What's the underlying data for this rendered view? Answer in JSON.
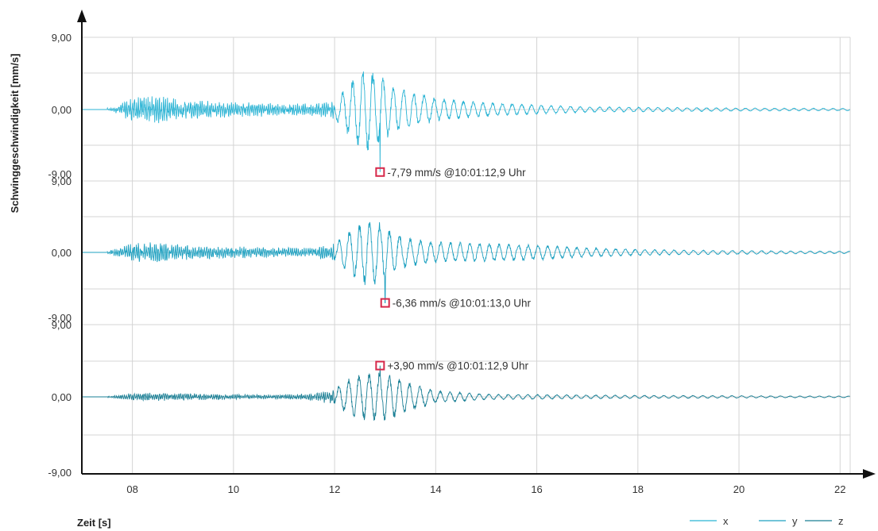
{
  "chart_data": {
    "type": "line",
    "ylabel": "Schwinggeschwindigkeit [mm/s]",
    "xlabel": "Zeit [s]",
    "xlim": [
      7.0,
      22.2
    ],
    "x_ticks": [
      {
        "value": 8,
        "label": "08"
      },
      {
        "value": 10,
        "label": "10"
      },
      {
        "value": 12,
        "label": "12"
      },
      {
        "value": 14,
        "label": "14"
      },
      {
        "value": 16,
        "label": "16"
      },
      {
        "value": 18,
        "label": "18"
      },
      {
        "value": 20,
        "label": "20"
      },
      {
        "value": 22,
        "label": "22"
      }
    ],
    "grid": true,
    "legend": {
      "position": "bottom-right",
      "entries": [
        "x",
        "y",
        "z"
      ]
    },
    "panels": [
      {
        "series": "x",
        "color": "#29b3d4",
        "ylim": [
          -9.0,
          9.0
        ],
        "tick_labels": {
          "top": "9,00",
          "zero": "0,00",
          "bottom": "-9,00"
        },
        "peak": {
          "time": 12.9,
          "value": -7.79,
          "label": "-7,79 mm/s @10:01:12,9 Uhr"
        },
        "envelope": [
          [
            7.6,
            0.2
          ],
          [
            8.0,
            1.6
          ],
          [
            8.5,
            1.8
          ],
          [
            9.0,
            1.4
          ],
          [
            9.5,
            1.1
          ],
          [
            10.0,
            1.0
          ],
          [
            10.5,
            0.9
          ],
          [
            11.0,
            0.8
          ],
          [
            11.5,
            0.8
          ],
          [
            12.0,
            1.2
          ],
          [
            12.3,
            3.5
          ],
          [
            12.6,
            5.5
          ],
          [
            12.9,
            4.5
          ],
          [
            13.2,
            3.0
          ],
          [
            13.5,
            2.4
          ],
          [
            14.0,
            1.5
          ],
          [
            15.0,
            0.9
          ],
          [
            16.0,
            0.6
          ],
          [
            17.0,
            0.35
          ],
          [
            18.0,
            0.3
          ],
          [
            19.0,
            0.25
          ],
          [
            20.0,
            0.2
          ],
          [
            21.0,
            0.18
          ],
          [
            22.2,
            0.15
          ]
        ]
      },
      {
        "series": "y",
        "color": "#1da0c0",
        "ylim": [
          -9.0,
          9.0
        ],
        "tick_labels": {
          "top": "9,00",
          "zero": "0,00",
          "bottom": "-9,00"
        },
        "peak": {
          "time": 13.0,
          "value": -6.36,
          "label": "-6,36 mm/s @10:01:13,0 Uhr"
        },
        "envelope": [
          [
            7.5,
            0.2
          ],
          [
            8.0,
            1.2
          ],
          [
            8.5,
            1.4
          ],
          [
            9.0,
            1.0
          ],
          [
            9.5,
            0.9
          ],
          [
            10.0,
            0.8
          ],
          [
            10.5,
            0.7
          ],
          [
            11.0,
            0.6
          ],
          [
            11.5,
            0.6
          ],
          [
            12.0,
            1.2
          ],
          [
            12.3,
            2.8
          ],
          [
            12.6,
            4.2
          ],
          [
            12.9,
            4.0
          ],
          [
            13.2,
            2.5
          ],
          [
            13.5,
            1.8
          ],
          [
            14.0,
            1.4
          ],
          [
            15.0,
            1.2
          ],
          [
            16.0,
            1.0
          ],
          [
            17.0,
            0.6
          ],
          [
            18.0,
            0.4
          ],
          [
            19.0,
            0.3
          ],
          [
            20.0,
            0.25
          ],
          [
            21.0,
            0.2
          ],
          [
            22.2,
            0.15
          ]
        ]
      },
      {
        "series": "z",
        "color": "#1a7f95",
        "ylim": [
          -9.0,
          9.0
        ],
        "tick_labels": {
          "top": "9,00",
          "zero": "0,00",
          "bottom": "-9,00"
        },
        "peak": {
          "time": 12.9,
          "value": 3.9,
          "label": "+3,90 mm/s @10:01:12,9 Uhr"
        },
        "envelope": [
          [
            7.5,
            0.1
          ],
          [
            8.0,
            0.5
          ],
          [
            8.5,
            0.55
          ],
          [
            9.0,
            0.45
          ],
          [
            9.5,
            0.4
          ],
          [
            10.0,
            0.35
          ],
          [
            10.5,
            0.3
          ],
          [
            11.0,
            0.3
          ],
          [
            11.5,
            0.4
          ],
          [
            12.0,
            1.0
          ],
          [
            12.3,
            2.4
          ],
          [
            12.6,
            3.0
          ],
          [
            12.9,
            3.2
          ],
          [
            13.2,
            2.6
          ],
          [
            13.5,
            1.8
          ],
          [
            14.0,
            0.8
          ],
          [
            15.0,
            0.35
          ],
          [
            16.0,
            0.3
          ],
          [
            17.0,
            0.25
          ],
          [
            18.0,
            0.2
          ],
          [
            19.0,
            0.18
          ],
          [
            20.0,
            0.15
          ],
          [
            21.0,
            0.12
          ],
          [
            22.2,
            0.1
          ]
        ]
      }
    ]
  }
}
